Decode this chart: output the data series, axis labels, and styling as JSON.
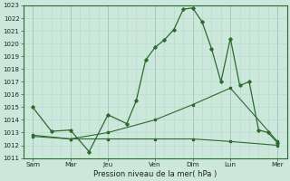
{
  "xlabel": "Pression niveau de la mer( hPa )",
  "background_color": "#cce8dc",
  "grid_color_major": "#a8c8b8",
  "grid_color_minor": "#b8d8c8",
  "line_color": "#2d6a2d",
  "ylim": [
    1011,
    1023
  ],
  "yticks": [
    1011,
    1012,
    1013,
    1014,
    1015,
    1016,
    1017,
    1018,
    1019,
    1020,
    1021,
    1022,
    1023
  ],
  "xlim": [
    0,
    14
  ],
  "x_day_positions": [
    0.5,
    2.5,
    4.5,
    7.0,
    9.0,
    11.0,
    13.5
  ],
  "x_day_labels": [
    "Sam",
    "Mar",
    "Jeu",
    "Ven",
    "Dim",
    "Lun",
    "Mer"
  ],
  "x_major_positions": [
    0.5,
    2.5,
    4.5,
    7.0,
    9.0,
    11.0,
    13.5
  ],
  "line_main_x": [
    0.5,
    1.5,
    2.5,
    3.5,
    4.5,
    5.5,
    6.0,
    6.5,
    7.0,
    7.5,
    8.0,
    8.5,
    9.0,
    9.5,
    10.0,
    10.5,
    11.0,
    11.5,
    12.0,
    12.5,
    13.0,
    13.5
  ],
  "line_main_y": [
    1015.0,
    1013.1,
    1013.2,
    1011.5,
    1014.4,
    1013.7,
    1015.5,
    1018.7,
    1019.7,
    1020.3,
    1021.1,
    1022.7,
    1022.8,
    1021.7,
    1019.6,
    1017.0,
    1020.4,
    1016.7,
    1017.0,
    1013.2,
    1013.0,
    1012.2
  ],
  "line_diag_x": [
    0.5,
    2.5,
    4.5,
    7.0,
    9.0,
    11.0,
    13.5
  ],
  "line_diag_y": [
    1012.7,
    1012.5,
    1013.0,
    1014.0,
    1015.2,
    1016.5,
    1012.3
  ],
  "line_flat_x": [
    0.5,
    2.5,
    4.5,
    7.0,
    9.0,
    11.0,
    13.5
  ],
  "line_flat_y": [
    1012.8,
    1012.5,
    1012.5,
    1012.5,
    1012.5,
    1012.3,
    1012.0
  ]
}
